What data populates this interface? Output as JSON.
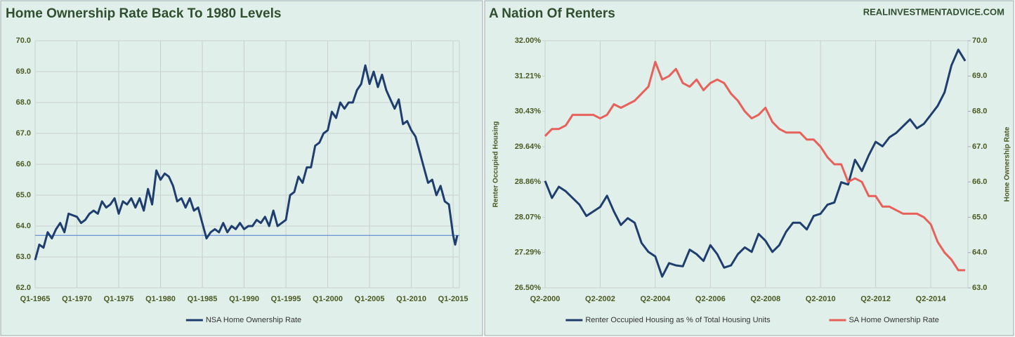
{
  "chart_data": [
    {
      "type": "line",
      "title": "Home Ownership Rate Back To 1980 Levels",
      "x": [
        1965,
        1965.5,
        1966,
        1966.5,
        1967,
        1967.5,
        1968,
        1968.5,
        1969,
        1970,
        1970.5,
        1971,
        1971.5,
        1972,
        1972.5,
        1973,
        1973.5,
        1974,
        1974.5,
        1975,
        1975.5,
        1976,
        1976.5,
        1977,
        1977.5,
        1978,
        1978.5,
        1979,
        1979.5,
        1980,
        1980.5,
        1981,
        1981.5,
        1982,
        1982.5,
        1983,
        1983.5,
        1984,
        1984.5,
        1985,
        1985.5,
        1986,
        1986.5,
        1987,
        1987.5,
        1988,
        1988.5,
        1989,
        1989.5,
        1990,
        1990.5,
        1991,
        1991.5,
        1992,
        1992.5,
        1993,
        1993.5,
        1994,
        1994.5,
        1995,
        1995.5,
        1996,
        1996.5,
        1997,
        1997.5,
        1998,
        1998.5,
        1999,
        1999.5,
        2000,
        2000.5,
        2001,
        2001.5,
        2002,
        2002.5,
        2003,
        2003.5,
        2004,
        2004.5,
        2005,
        2005.5,
        2006,
        2006.5,
        2007,
        2007.5,
        2008,
        2008.5,
        2009,
        2009.5,
        2010,
        2010.5,
        2011,
        2011.5,
        2012,
        2012.5,
        2013,
        2013.5,
        2014,
        2014.5,
        2015,
        2015.25,
        2015.5
      ],
      "series": [
        {
          "name": "NSA Home Ownership Rate",
          "color": "#1f3e6e",
          "values": [
            62.9,
            63.4,
            63.3,
            63.8,
            63.6,
            63.9,
            64.1,
            63.8,
            64.4,
            64.3,
            64.1,
            64.2,
            64.4,
            64.5,
            64.4,
            64.8,
            64.6,
            64.7,
            64.9,
            64.4,
            64.8,
            64.7,
            64.9,
            64.6,
            64.9,
            64.5,
            65.2,
            64.7,
            65.8,
            65.5,
            65.7,
            65.6,
            65.3,
            64.8,
            64.9,
            64.6,
            64.9,
            64.5,
            64.6,
            64.1,
            63.6,
            63.8,
            63.9,
            63.8,
            64.1,
            63.8,
            64.0,
            63.9,
            64.1,
            63.9,
            64.0,
            64.0,
            64.2,
            64.1,
            64.3,
            64.0,
            64.5,
            64.0,
            64.1,
            64.2,
            65.0,
            65.1,
            65.6,
            65.4,
            65.9,
            65.9,
            66.6,
            66.7,
            67.0,
            67.1,
            67.7,
            67.5,
            68.0,
            67.8,
            68.0,
            68.0,
            68.4,
            68.6,
            69.2,
            68.6,
            69.0,
            68.5,
            68.9,
            68.4,
            68.1,
            67.8,
            68.1,
            67.3,
            67.4,
            67.1,
            66.9,
            66.4,
            65.9,
            65.4,
            65.5,
            65.0,
            65.3,
            64.8,
            64.7,
            63.7,
            63.4,
            63.7
          ]
        }
      ],
      "hline": {
        "value": 63.7,
        "color": "#4a7bd0"
      },
      "xlim": [
        1965,
        2015.75
      ],
      "xticks": [
        {
          "value": 1965,
          "label": "Q1-1965"
        },
        {
          "value": 1970,
          "label": "Q1-1970"
        },
        {
          "value": 1975,
          "label": "Q1-1975"
        },
        {
          "value": 1980,
          "label": "Q1-1980"
        },
        {
          "value": 1985,
          "label": "Q1-1985"
        },
        {
          "value": 1990,
          "label": "Q1-1990"
        },
        {
          "value": 1995,
          "label": "Q1-1995"
        },
        {
          "value": 2000,
          "label": "Q1-2000"
        },
        {
          "value": 2005,
          "label": "Q1-2005"
        },
        {
          "value": 2010,
          "label": "Q1-2010"
        },
        {
          "value": 2015,
          "label": "Q1-2015"
        }
      ],
      "ylim": [
        62,
        70
      ],
      "yticks": [
        {
          "value": 62,
          "label": "62.0"
        },
        {
          "value": 63,
          "label": "63.0"
        },
        {
          "value": 64,
          "label": "64.0"
        },
        {
          "value": 65,
          "label": "65.0"
        },
        {
          "value": 66,
          "label": "66.0"
        },
        {
          "value": 67,
          "label": "67.0"
        },
        {
          "value": 68,
          "label": "68.0"
        },
        {
          "value": 69,
          "label": "69.0"
        },
        {
          "value": 70,
          "label": "70.0"
        }
      ],
      "grid": "both",
      "legend": "bottom"
    },
    {
      "type": "line",
      "title": "A Nation Of Renters",
      "annotation": "REALINVESTMENTADVICE.COM",
      "ylabel": "Renter Occupied  Housing",
      "y2label": "Home Ownership Rate",
      "series": [
        {
          "name": "Renter Occupied Housing as % of Total Housing Units",
          "color": "#1f3e6e",
          "x": [
            2000.25,
            2000.5,
            2000.75,
            2001,
            2001.5,
            2001.75,
            2002,
            2002.25,
            2002.5,
            2002.75,
            2003,
            2003.25,
            2003.5,
            2003.75,
            2004,
            2004.25,
            2004.5,
            2004.75,
            2005,
            2005.25,
            2005.5,
            2005.75,
            2006,
            2006.25,
            2006.5,
            2006.75,
            2007,
            2007.25,
            2007.5,
            2007.75,
            2008,
            2008.25,
            2008.5,
            2008.75,
            2009,
            2009.25,
            2009.5,
            2009.75,
            2010,
            2010.25,
            2010.5,
            2010.75,
            2011,
            2011.25,
            2011.5,
            2011.75,
            2012,
            2012.25,
            2012.5,
            2012.75,
            2013,
            2013.25,
            2013.5,
            2013.75,
            2014,
            2014.25,
            2014.5,
            2014.75,
            2015,
            2015.25,
            2015.5
          ],
          "values": [
            28.88,
            28.5,
            28.75,
            28.65,
            28.35,
            28.1,
            28.2,
            28.3,
            28.55,
            28.2,
            27.9,
            28.05,
            27.95,
            27.5,
            27.3,
            27.2,
            26.75,
            27.05,
            27.0,
            26.98,
            27.35,
            27.25,
            27.1,
            27.45,
            27.25,
            26.95,
            27.0,
            27.25,
            27.4,
            27.3,
            27.7,
            27.55,
            27.3,
            27.45,
            27.75,
            27.95,
            27.95,
            27.8,
            28.1,
            28.15,
            28.35,
            28.4,
            28.85,
            28.8,
            29.35,
            29.1,
            29.45,
            29.75,
            29.65,
            29.85,
            29.95,
            30.1,
            30.25,
            30.05,
            30.15,
            30.35,
            30.55,
            30.85,
            31.45,
            31.8,
            31.55
          ]
        },
        {
          "name": "SA Home Ownership Rate",
          "color": "#e8605a",
          "axis": "y2",
          "x": [
            2000.25,
            2000.5,
            2000.75,
            2001,
            2001.25,
            2001.5,
            2002,
            2002.25,
            2002.5,
            2002.75,
            2003,
            2003.5,
            2003.75,
            2004,
            2004.25,
            2004.5,
            2004.75,
            2005,
            2005.25,
            2005.5,
            2005.75,
            2006,
            2006.25,
            2006.5,
            2006.75,
            2007,
            2007.25,
            2007.5,
            2007.75,
            2008,
            2008.25,
            2008.5,
            2008.75,
            2009,
            2009.5,
            2009.75,
            2010,
            2010.25,
            2010.5,
            2010.75,
            2011,
            2011.25,
            2011.5,
            2011.75,
            2012,
            2012.25,
            2012.5,
            2012.75,
            2013,
            2013.25,
            2013.5,
            2013.75,
            2014,
            2014.25,
            2014.5,
            2014.75,
            2015,
            2015.25,
            2015.5
          ],
          "values": [
            67.3,
            67.5,
            67.5,
            67.6,
            67.9,
            67.9,
            67.9,
            67.8,
            67.9,
            68.2,
            68.1,
            68.3,
            68.5,
            68.7,
            69.4,
            68.9,
            69.0,
            69.2,
            68.8,
            68.7,
            68.9,
            68.6,
            68.8,
            68.9,
            68.8,
            68.5,
            68.3,
            68.0,
            67.8,
            67.9,
            68.1,
            67.7,
            67.5,
            67.4,
            67.4,
            67.2,
            67.2,
            67.0,
            66.7,
            66.5,
            66.5,
            66.0,
            66.1,
            66.0,
            65.6,
            65.6,
            65.3,
            65.3,
            65.2,
            65.1,
            65.1,
            65.1,
            65.0,
            64.8,
            64.3,
            64.0,
            63.8,
            63.5,
            63.5
          ]
        }
      ],
      "xlim": [
        2000.25,
        2015.6
      ],
      "xticks": [
        {
          "value": 2000.25,
          "label": "Q2-2000"
        },
        {
          "value": 2002.25,
          "label": "Q2-2002"
        },
        {
          "value": 2004.25,
          "label": "Q2-2004"
        },
        {
          "value": 2006.25,
          "label": "Q2-2006"
        },
        {
          "value": 2008.25,
          "label": "Q2-2008"
        },
        {
          "value": 2010.25,
          "label": "Q2-2010"
        },
        {
          "value": 2012.25,
          "label": "Q2-2012"
        },
        {
          "value": 2014.25,
          "label": "Q2-2014"
        }
      ],
      "ylim": [
        26.5,
        32
      ],
      "yticks": [
        {
          "value": 26.5,
          "label": "26.50%"
        },
        {
          "value": 27.29,
          "label": "27.29%"
        },
        {
          "value": 28.07,
          "label": "28.07%"
        },
        {
          "value": 28.86,
          "label": "28.86%"
        },
        {
          "value": 29.64,
          "label": "29.64%"
        },
        {
          "value": 30.43,
          "label": "30.43%"
        },
        {
          "value": 31.21,
          "label": "31.21%"
        },
        {
          "value": 32,
          "label": "32.00%"
        }
      ],
      "y2lim": [
        63,
        70
      ],
      "y2ticks": [
        {
          "value": 63,
          "label": "63.0"
        },
        {
          "value": 64,
          "label": "64.0"
        },
        {
          "value": 65,
          "label": "65.0"
        },
        {
          "value": 66,
          "label": "66.0"
        },
        {
          "value": 67,
          "label": "67.0"
        },
        {
          "value": 68,
          "label": "68.0"
        },
        {
          "value": 69,
          "label": "69.0"
        },
        {
          "value": 70,
          "label": "70.0"
        }
      ],
      "grid": "x",
      "legend": "bottom"
    }
  ]
}
